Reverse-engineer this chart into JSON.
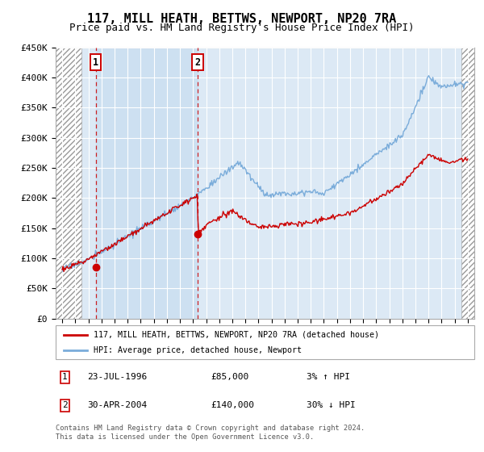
{
  "title": "117, MILL HEATH, BETTWS, NEWPORT, NP20 7RA",
  "subtitle": "Price paid vs. HM Land Registry's House Price Index (HPI)",
  "title_fontsize": 11,
  "subtitle_fontsize": 9,
  "plot_bg_color": "#dce9f5",
  "ylim": [
    0,
    450000
  ],
  "yticks": [
    0,
    50000,
    100000,
    150000,
    200000,
    250000,
    300000,
    350000,
    400000,
    450000
  ],
  "ytick_labels": [
    "£0",
    "£50K",
    "£100K",
    "£150K",
    "£200K",
    "£250K",
    "£300K",
    "£350K",
    "£400K",
    "£450K"
  ],
  "xlim_start": 1993.5,
  "xlim_end": 2025.5,
  "xticks": [
    1994,
    1995,
    1996,
    1997,
    1998,
    1999,
    2000,
    2001,
    2002,
    2003,
    2004,
    2005,
    2006,
    2007,
    2008,
    2009,
    2010,
    2011,
    2012,
    2013,
    2014,
    2015,
    2016,
    2017,
    2018,
    2019,
    2020,
    2021,
    2022,
    2023,
    2024,
    2025
  ],
  "transaction1_x": 1996.56,
  "transaction1_y": 85000,
  "transaction2_x": 2004.33,
  "transaction2_y": 140000,
  "transaction1_date": "23-JUL-1996",
  "transaction1_price": "£85,000",
  "transaction1_hpi": "3% ↑ HPI",
  "transaction2_date": "30-APR-2004",
  "transaction2_price": "£140,000",
  "transaction2_hpi": "30% ↓ HPI",
  "legend_line1": "117, MILL HEATH, BETTWS, NEWPORT, NP20 7RA (detached house)",
  "legend_line2": "HPI: Average price, detached house, Newport",
  "red_line_color": "#cc0000",
  "blue_line_color": "#7aacda",
  "shade_color": "#c8ddf0",
  "hatch_end_year": 1995.5,
  "hatch_start_year2": 2024.5,
  "footer": "Contains HM Land Registry data © Crown copyright and database right 2024.\nThis data is licensed under the Open Government Licence v3.0."
}
